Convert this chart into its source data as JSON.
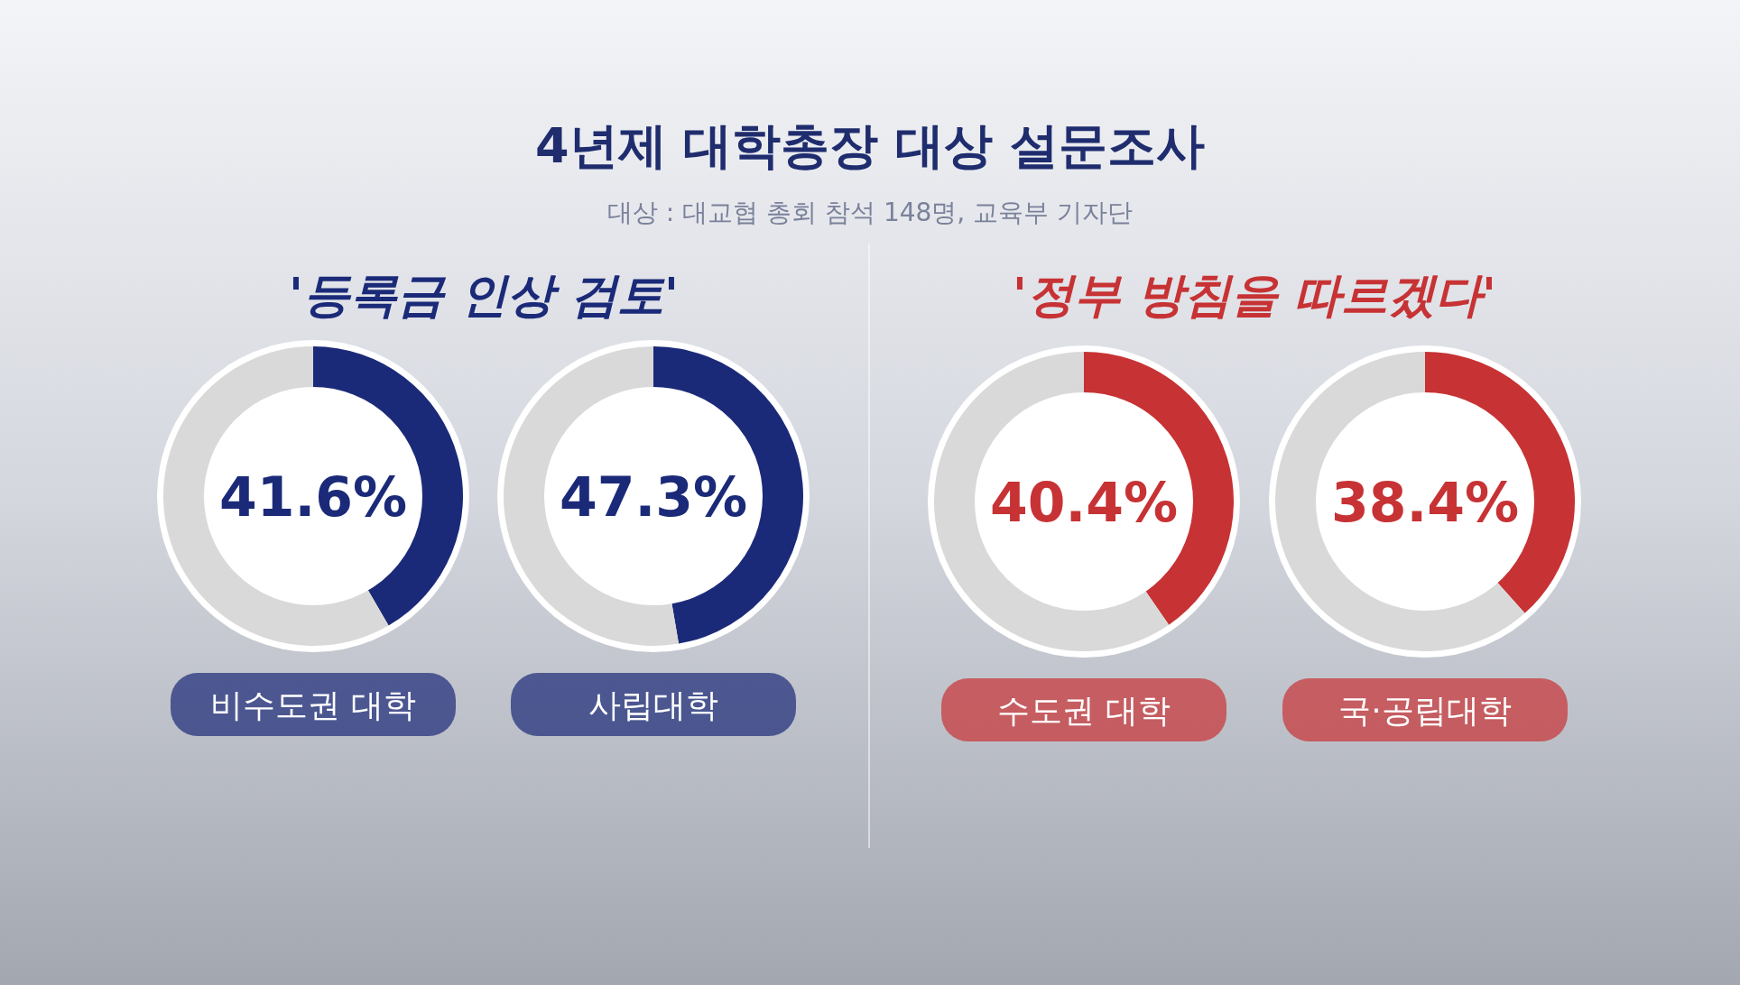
{
  "chart_data": [
    {
      "type": "other",
      "title": "4년제 대학총장 대상 설문조사",
      "subtitle": "대상 : 대교협 총회 참석 148명, 교육부 기자단",
      "annotations": [
        "'등록금 인상 검토'",
        "'정부 방침을 따르겠다'"
      ],
      "colors": [
        "#1b2a78",
        "#c73234"
      ]
    },
    {
      "type": "donut",
      "title": "비수도권 대학",
      "annotations": [
        "41.6%"
      ],
      "categories": [
        null,
        null
      ],
      "values": [
        41.6,
        58.4
      ],
      "colors": [
        "#1b2a78",
        "#d9d9d9"
      ]
    },
    {
      "type": "donut",
      "title": "사립대학",
      "annotations": [
        "47.3%"
      ],
      "categories": [
        null,
        null
      ],
      "values": [
        47.3,
        52.7
      ],
      "colors": [
        "#1b2a78",
        "#d9d9d9"
      ]
    },
    {
      "type": "donut",
      "title": "수도권 대학",
      "annotations": [
        "40.4%"
      ],
      "categories": [
        null,
        null
      ],
      "values": [
        40.4,
        59.6
      ],
      "colors": [
        "#c73234",
        "#d9d9d9"
      ]
    },
    {
      "type": "donut",
      "title": "국·공립대학",
      "annotations": [
        "38.4%"
      ],
      "categories": [
        null,
        null
      ],
      "values": [
        38.4,
        61.6
      ],
      "colors": [
        "#c73234",
        "#d9d9d9"
      ]
    }
  ]
}
